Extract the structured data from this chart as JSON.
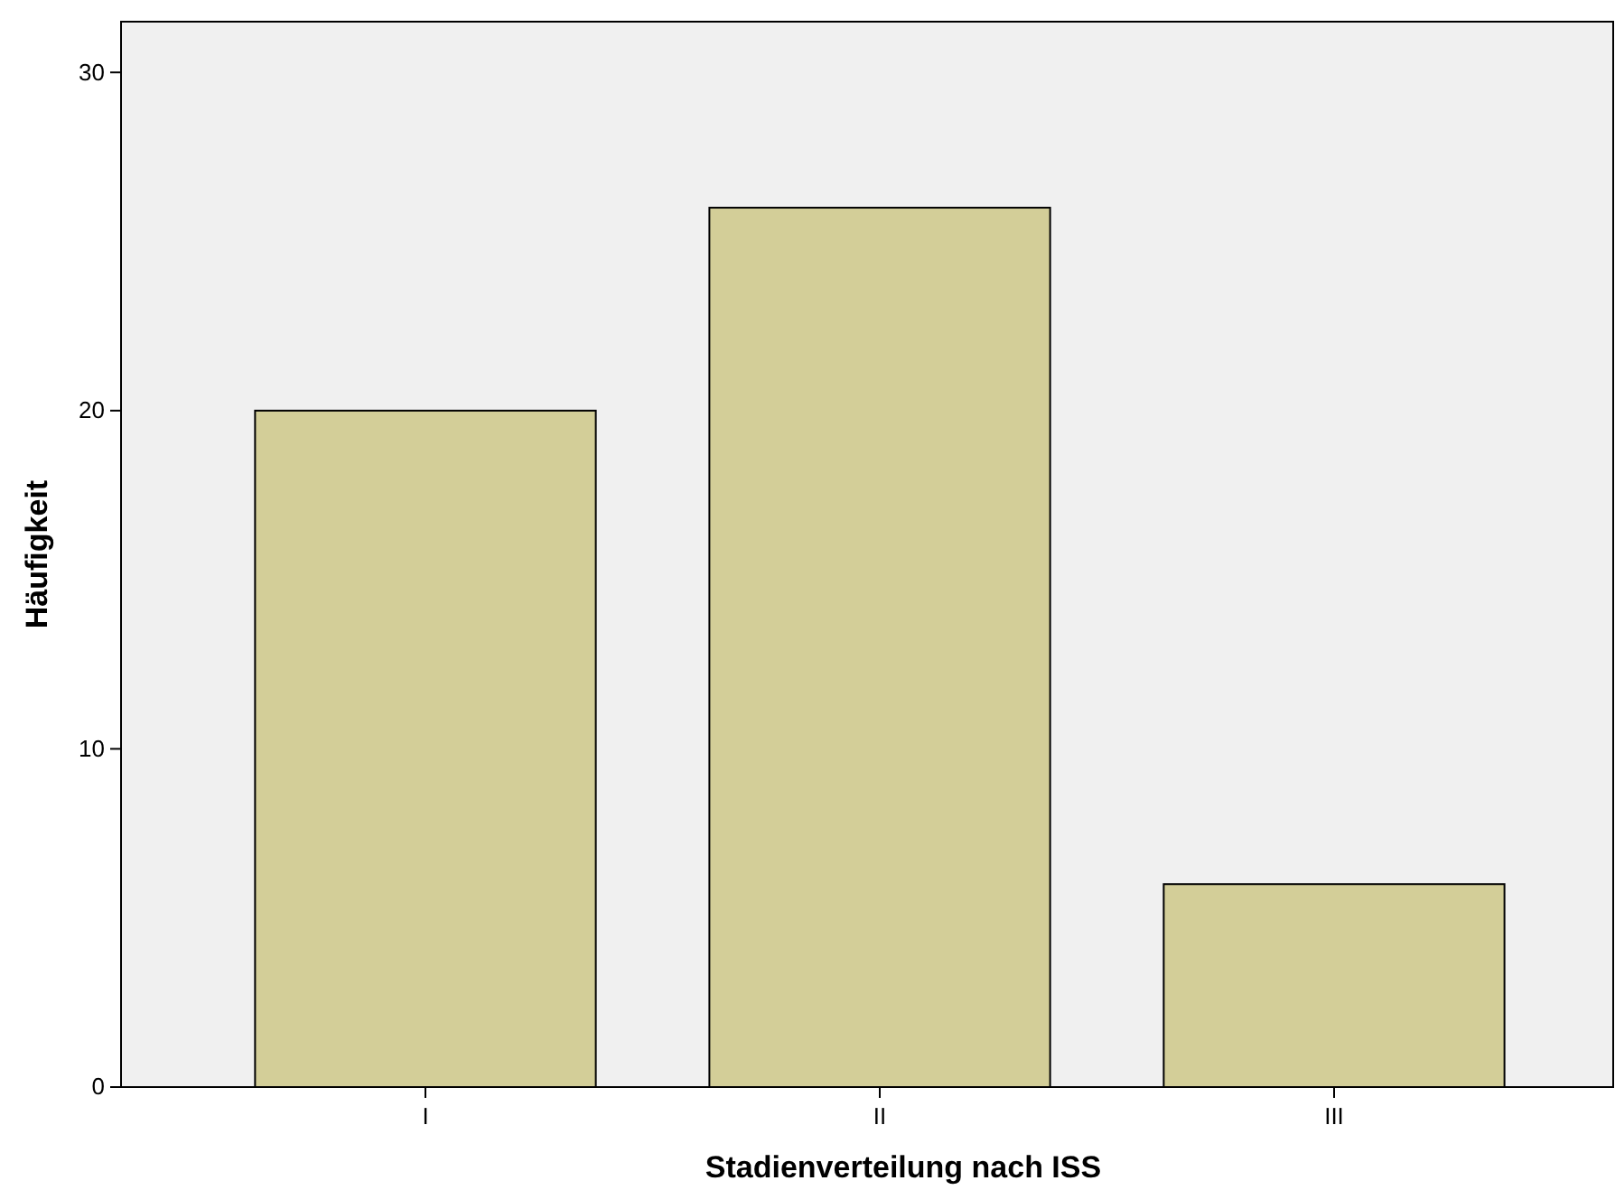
{
  "chart_data": {
    "type": "bar",
    "xlabel": "Stadienverteilung nach ISS",
    "ylabel": "Häufigkeit",
    "categories": [
      "I",
      "II",
      "III"
    ],
    "values": [
      20,
      26,
      6
    ],
    "color": "#d3ce98",
    "ylim": [
      0,
      31.5
    ],
    "yticks": [
      0,
      10,
      20,
      30
    ],
    "grid": false
  }
}
